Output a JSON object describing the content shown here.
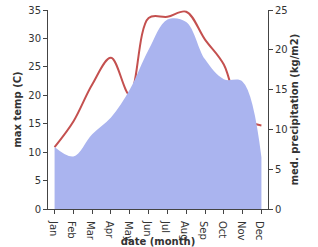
{
  "chart_data": {
    "type": "line",
    "x_label": "date (month)",
    "y_label": "max temp (C)",
    "y2_label": "med. precipitation (kg/m2)",
    "categories": [
      "Jan",
      "Feb",
      "Mar",
      "Apr",
      "May",
      "Jun",
      "Jul",
      "Aug",
      "Sep",
      "Oct",
      "Nov",
      "Dec"
    ],
    "series": [
      {
        "name": "med. precipitation",
        "type": "area",
        "axis": "y2",
        "color": "#aab4ef",
        "line_style": "spline",
        "values": [
          7.8,
          6.6,
          9.4,
          11.5,
          15.0,
          20.0,
          23.8,
          23.5,
          18.8,
          16.3,
          16.0,
          6.5
        ]
      },
      {
        "name": "max temp",
        "type": "line",
        "axis": "y",
        "color": "#c4504f",
        "line_style": "spline",
        "values": [
          10.9,
          15.4,
          21.9,
          26.6,
          20.1,
          33.6,
          33.8,
          34.7,
          29.8,
          25.4,
          16.1,
          14.7
        ]
      }
    ],
    "ylim": [
      0,
      35
    ],
    "yticks": [
      0,
      5,
      10,
      15,
      20,
      25,
      30,
      35
    ],
    "y2lim": [
      0,
      25
    ],
    "y2ticks": [
      0,
      5,
      10,
      15,
      20,
      25
    ],
    "grid": false
  }
}
